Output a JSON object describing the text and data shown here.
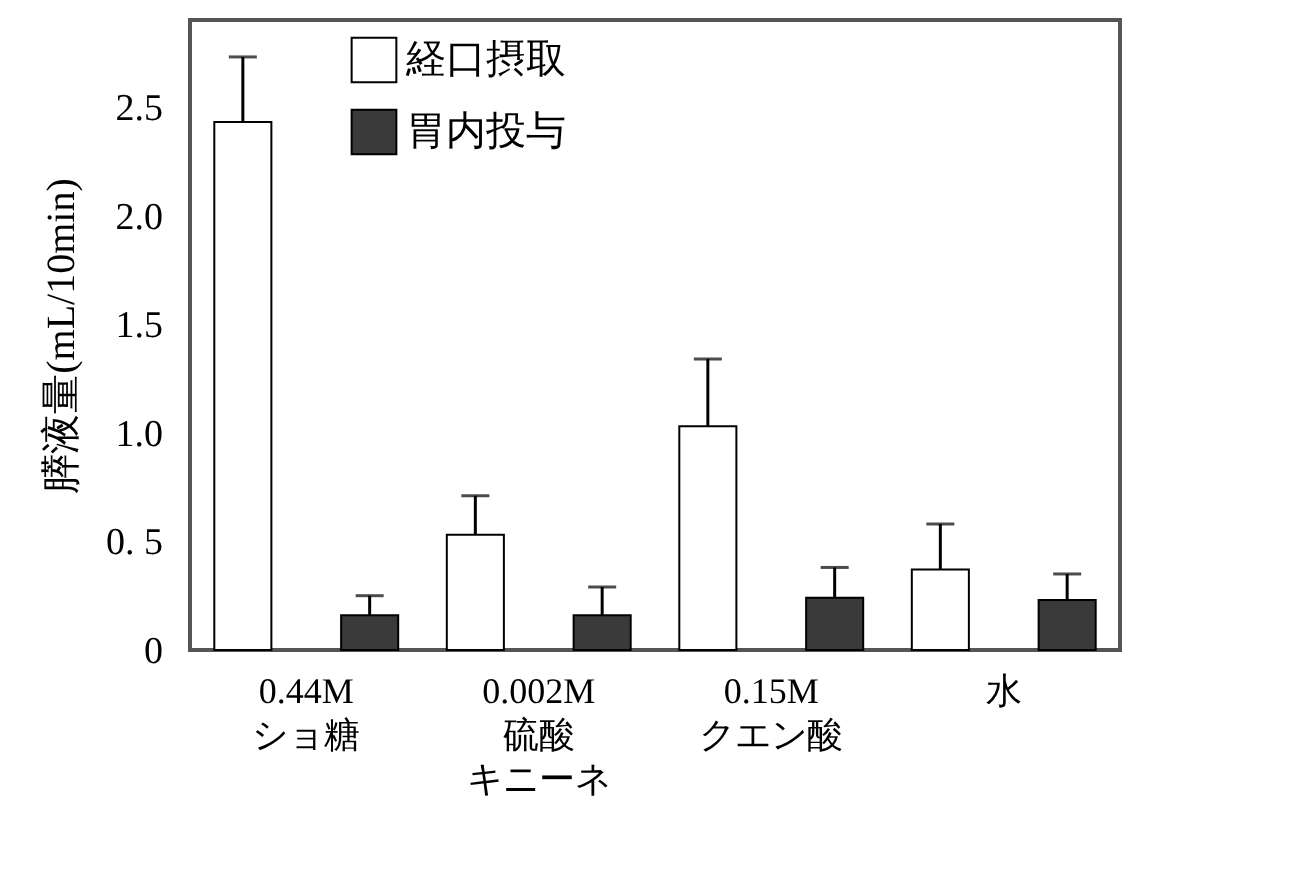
{
  "chart_data": {
    "type": "bar",
    "ylabel": "膵液量(mL/10min)",
    "categories": [
      "0.44M\nショ糖",
      "0.002M\n硫酸キニーネ",
      "0.15M\nクエン酸",
      "水"
    ],
    "series": [
      {
        "name": "経口摂取",
        "color": "#ffffff",
        "values": [
          2.43,
          0.53,
          1.03,
          0.37
        ],
        "errors": [
          [
            2.43,
            2.73
          ],
          [
            0.53,
            0.71
          ],
          [
            1.03,
            1.34
          ],
          [
            0.37,
            0.58
          ]
        ]
      },
      {
        "name": "胃内投与",
        "color": "#3a3a3a",
        "values": [
          0.16,
          0.16,
          0.24,
          0.23
        ],
        "errors": [
          [
            0.16,
            0.25
          ],
          [
            0.16,
            0.29
          ],
          [
            0.24,
            0.38
          ],
          [
            0.23,
            0.35
          ]
        ]
      }
    ],
    "ylim": [
      0,
      2.9
    ],
    "yticks": [
      0,
      {
        "value": 0.5,
        "label": "0. 5"
      },
      {
        "value": 1,
        "label": "1.0"
      },
      {
        "value": 1.5,
        "label": "1.5"
      },
      {
        "value": 2,
        "label": "2.0"
      },
      {
        "value": 2.5,
        "label": "2.5"
      }
    ],
    "legend": "top",
    "grid": false
  }
}
